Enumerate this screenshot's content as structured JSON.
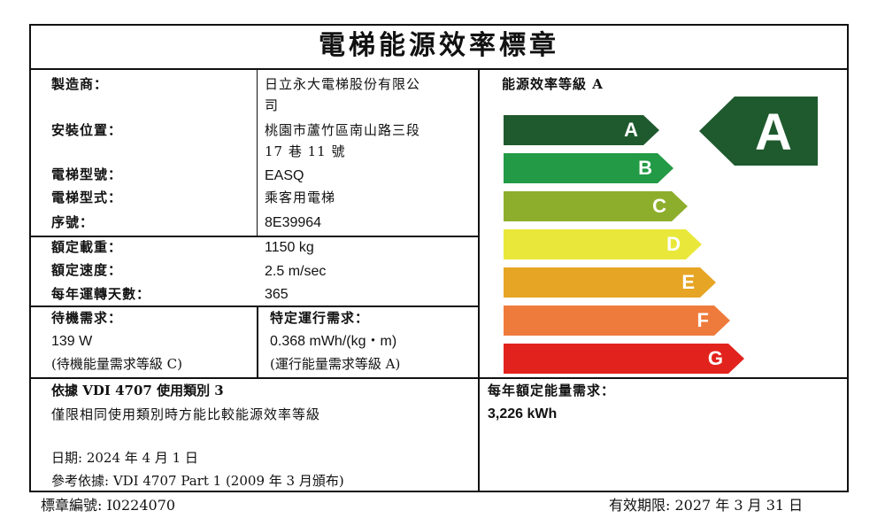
{
  "title": "電梯能源效率標章",
  "manufacturer": {
    "label": "製造商：",
    "value_line1": "日立永大電梯股份有限公",
    "value_line2": "司"
  },
  "location": {
    "label": "安裝位置：",
    "value_line1": "桃園市蘆竹區南山路三段",
    "value_line2": "17 巷 11 號"
  },
  "model": {
    "label": "電梯型號：",
    "value": "EASQ"
  },
  "type": {
    "label": "電梯型式：",
    "value": "乘客用電梯"
  },
  "serial": {
    "label": "序號：",
    "value": "8E39964"
  },
  "load": {
    "label": "額定載重：",
    "value": "1150 kg"
  },
  "speed": {
    "label": "額定速度：",
    "value": "2.5 m/sec"
  },
  "trips": {
    "label": "每年運轉天數：",
    "value": "365"
  },
  "standby": {
    "label": "待機需求：",
    "value": "139 W",
    "class": "(待機能量需求等級 C)"
  },
  "running": {
    "label": "特定運行需求：",
    "value": "0.368 mWh/(kg・m)",
    "class": "(運行能量需求等級 A)"
  },
  "vdi": {
    "title": "依據 VDI 4707 使用類別 3",
    "note": "僅限相同使用類別時方能比較能源效率等級"
  },
  "date": {
    "text": "日期: 2024 年 4 月 1 日"
  },
  "reference": {
    "text": "參考依據: VDI 4707 Part 1 (2009 年 3 月頒布)"
  },
  "efficiency": {
    "label": "能源效率等級 A",
    "rating": "A"
  },
  "annual": {
    "label": "每年額定能量需求：",
    "value": "3,226 kWh"
  },
  "label_no": "標章編號: I0224070",
  "valid_until": "有效期限: 2027 年 3 月 31 日",
  "grades": [
    {
      "letter": "A",
      "color": "#1f5a2e"
    },
    {
      "letter": "B",
      "color": "#239a45"
    },
    {
      "letter": "C",
      "color": "#8dae2c"
    },
    {
      "letter": "D",
      "color": "#e9e83a"
    },
    {
      "letter": "E",
      "color": "#e6a524"
    },
    {
      "letter": "F",
      "color": "#ee7b3c"
    },
    {
      "letter": "G",
      "color": "#e2231d"
    }
  ],
  "rating_color": "#1f5a2e"
}
